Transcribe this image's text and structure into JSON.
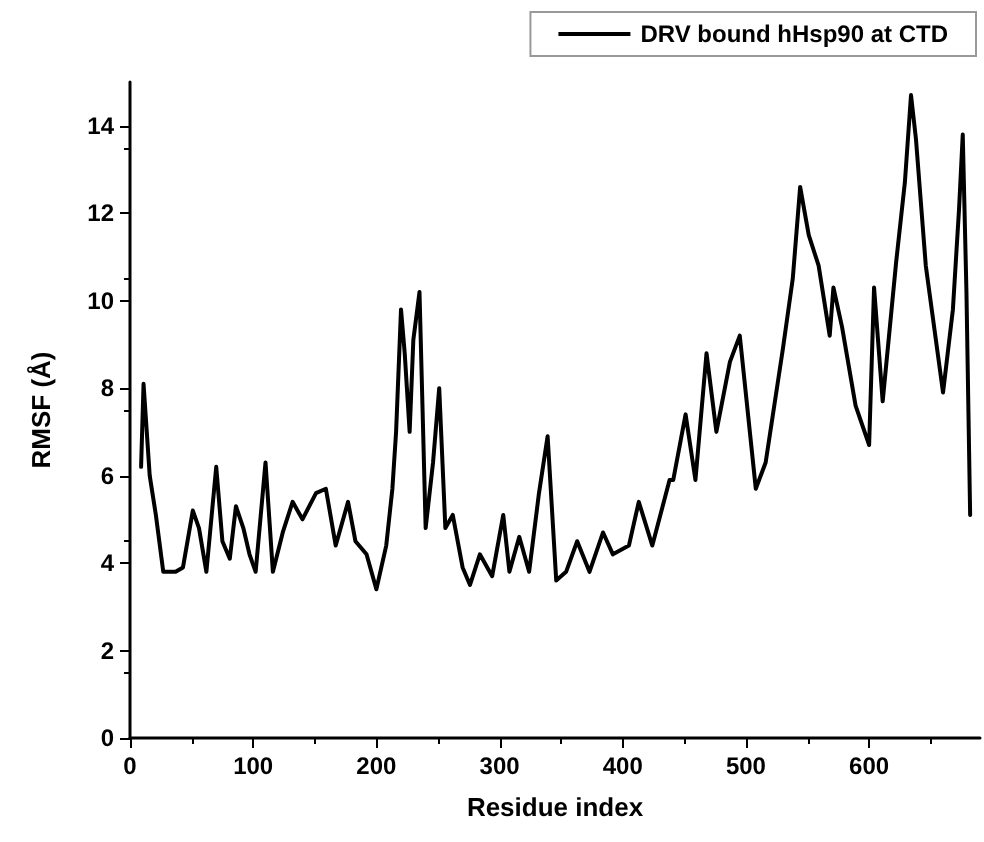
{
  "chart_data": {
    "type": "line",
    "xlabel": "Residue index",
    "ylabel": "RMSF (Å)",
    "legend": "top right",
    "grid": false,
    "marker": "none",
    "line_style": "solid",
    "xlim": [
      0,
      690
    ],
    "ylim": [
      0,
      15
    ],
    "xticks": [
      0,
      100,
      200,
      300,
      400,
      500,
      600
    ],
    "yticks": [
      0,
      2,
      4,
      6,
      8,
      10,
      12,
      14
    ],
    "series": [
      {
        "name": "DRV bound hHsp90 at CTD",
        "color": "#000000",
        "x": [
          9,
          11,
          16,
          21,
          27,
          37,
          43,
          51,
          56,
          62,
          70,
          75,
          81,
          86,
          92,
          97,
          102,
          110,
          116,
          124,
          132,
          140,
          151,
          159,
          167,
          177,
          183,
          192,
          200,
          208,
          213,
          216,
          220,
          223,
          227,
          230,
          235,
          240,
          246,
          251,
          256,
          262,
          270,
          276,
          284,
          294,
          303,
          308,
          316,
          324,
          332,
          339,
          346,
          354,
          363,
          373,
          384,
          392,
          405,
          413,
          424,
          438,
          441,
          451,
          459,
          468,
          476,
          487,
          495,
          508,
          516,
          530,
          538,
          544,
          551,
          559,
          568,
          571,
          578,
          589,
          600,
          604,
          611,
          622,
          629,
          634,
          638,
          646,
          660,
          668,
          673,
          676,
          679,
          682
        ],
        "values": [
          6.2,
          8.1,
          6.0,
          5.1,
          3.8,
          3.8,
          3.9,
          5.2,
          4.8,
          3.8,
          6.2,
          4.5,
          4.1,
          5.3,
          4.8,
          4.2,
          3.8,
          6.3,
          3.8,
          4.7,
          5.4,
          5.0,
          5.6,
          5.7,
          4.4,
          5.4,
          4.5,
          4.2,
          3.4,
          4.4,
          5.7,
          7.0,
          9.8,
          8.8,
          7.0,
          9.1,
          10.2,
          4.8,
          6.3,
          8.0,
          4.8,
          5.1,
          3.9,
          3.5,
          4.2,
          3.7,
          5.1,
          3.8,
          4.6,
          3.8,
          5.6,
          6.9,
          3.6,
          3.8,
          4.5,
          3.8,
          4.7,
          4.2,
          4.4,
          5.4,
          4.4,
          5.9,
          5.9,
          7.4,
          5.9,
          8.8,
          7.0,
          8.6,
          9.2,
          5.7,
          6.3,
          8.9,
          10.5,
          12.6,
          11.5,
          10.8,
          9.2,
          10.3,
          9.4,
          7.6,
          6.7,
          10.3,
          7.7,
          10.9,
          12.7,
          14.7,
          13.7,
          10.8,
          7.9,
          9.8,
          12.1,
          13.8,
          10.2,
          5.1
        ]
      }
    ]
  }
}
